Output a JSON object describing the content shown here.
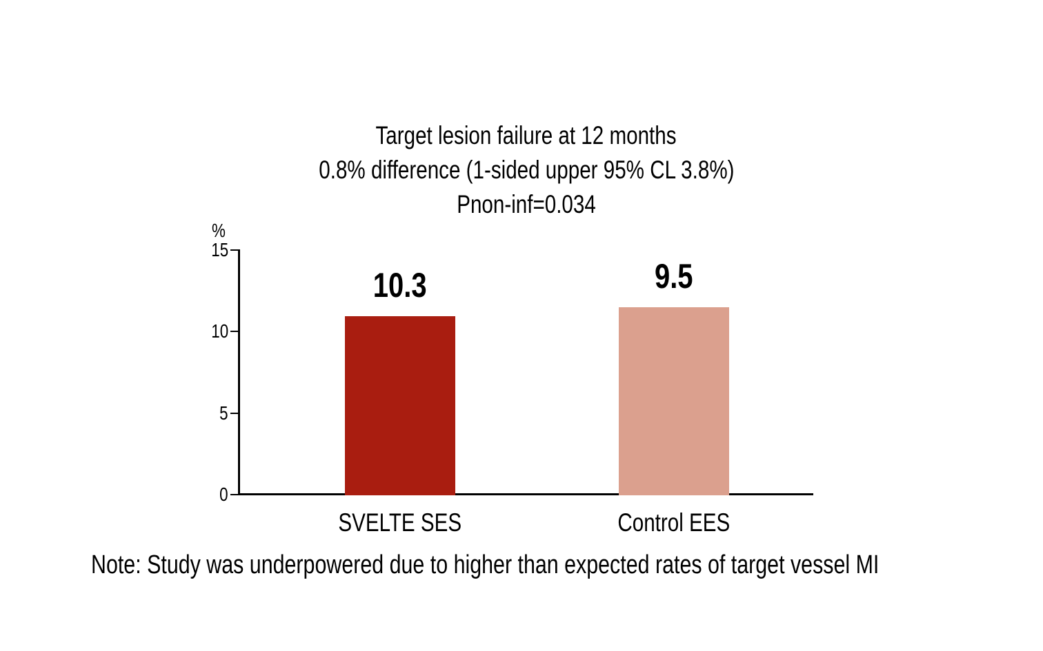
{
  "figure": {
    "note": "Note: Study was underpowered due to higher than expected rates of target vessel MI"
  },
  "chart_data": {
    "type": "bar",
    "title_lines": [
      "Target lesion failure at 12 months",
      "0.8% difference (1-sided upper 95% CL 3.8%)",
      "Pnon-inf=0.034"
    ],
    "y_unit": "%",
    "ylabel": "%",
    "xlabel": "",
    "ylim": [
      0,
      15
    ],
    "yticks": [
      0,
      5,
      10,
      15
    ],
    "grid": false,
    "legend": false,
    "categories": [
      "SVELTE SES",
      "Control EES"
    ],
    "values": [
      10.3,
      9.5
    ],
    "value_labels": [
      "10.3",
      "9.5"
    ],
    "bar_colors": [
      "#A91D10",
      "#DBA08E"
    ],
    "bar_drawn_heights_units": [
      10.95,
      11.5
    ],
    "note": "Note: Study was underpowered due to higher than expected rates of target vessel MI"
  }
}
